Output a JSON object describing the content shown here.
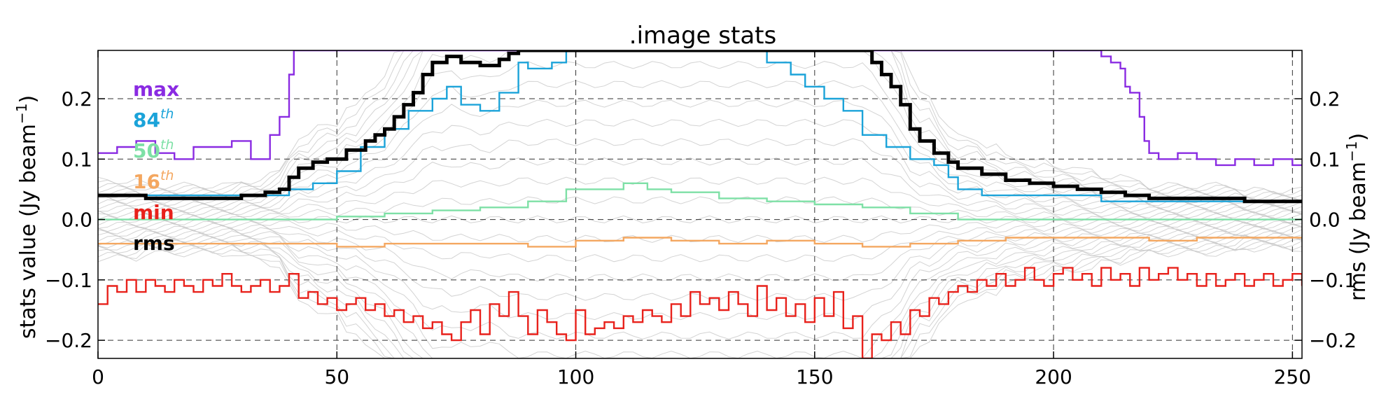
{
  "chart_data": {
    "type": "line",
    "title": ".image stats",
    "xlabel": "",
    "ylabel": "stats value (Jy beam",
    "ylabel_sup": "−1",
    "ylabel_tail": ")",
    "y2label": "rms (Jy beam",
    "y2label_sup": "−1",
    "y2label_tail": ")",
    "xlim": [
      0,
      252
    ],
    "ylim": [
      -0.23,
      0.28
    ],
    "x_ticks": [
      0,
      50,
      100,
      150,
      200,
      250
    ],
    "x_tick_labels": [
      "0",
      "50",
      "100",
      "150",
      "200",
      "250"
    ],
    "y_ticks": [
      -0.2,
      -0.1,
      0.0,
      0.1,
      0.2
    ],
    "y_tick_labels": [
      "−0.2",
      "−0.1",
      "0.0",
      "0.1",
      "0.2"
    ],
    "y2_tick_labels": [
      "−0.2",
      "−0.1",
      "0.0",
      "0.1",
      "0.2"
    ],
    "grid": true,
    "legend_position": "top-left",
    "legend": [
      {
        "text": "max",
        "sup": "",
        "color": "#8a2be2"
      },
      {
        "text": "84",
        "sup": "th",
        "color": "#1ba3d9"
      },
      {
        "text": "50",
        "sup": "th",
        "color": "#7ee0a6"
      },
      {
        "text": "16",
        "sup": "th",
        "color": "#f4a760"
      },
      {
        "text": "min",
        "sup": "",
        "color": "#e8211b"
      },
      {
        "text": "rms",
        "sup": "",
        "color": "#000000"
      }
    ],
    "series": [
      {
        "key": "max",
        "color": "#8a2be2",
        "style": "step",
        "width": 2.4,
        "points": [
          [
            0,
            0.11
          ],
          [
            4,
            0.12
          ],
          [
            8,
            0.13
          ],
          [
            12,
            0.11
          ],
          [
            16,
            0.1
          ],
          [
            20,
            0.12
          ],
          [
            24,
            0.12
          ],
          [
            28,
            0.13
          ],
          [
            32,
            0.1
          ],
          [
            36,
            0.14
          ],
          [
            38,
            0.17
          ],
          [
            40,
            0.24
          ],
          [
            41,
            0.28
          ],
          [
            43,
            0.28
          ],
          [
            206,
            0.28
          ],
          [
            210,
            0.27
          ],
          [
            212,
            0.26
          ],
          [
            214,
            0.25
          ],
          [
            215,
            0.22
          ],
          [
            216,
            0.21
          ],
          [
            218,
            0.17
          ],
          [
            219,
            0.13
          ],
          [
            220,
            0.11
          ],
          [
            222,
            0.1
          ],
          [
            226,
            0.11
          ],
          [
            230,
            0.1
          ],
          [
            234,
            0.09
          ],
          [
            238,
            0.1
          ],
          [
            242,
            0.09
          ],
          [
            246,
            0.1
          ],
          [
            250,
            0.09
          ],
          [
            252,
            0.09
          ]
        ]
      },
      {
        "key": "p84",
        "color": "#1ba3d9",
        "style": "step",
        "width": 2.4,
        "points": [
          [
            0,
            0.04
          ],
          [
            20,
            0.04
          ],
          [
            35,
            0.04
          ],
          [
            40,
            0.05
          ],
          [
            45,
            0.06
          ],
          [
            50,
            0.08
          ],
          [
            55,
            0.12
          ],
          [
            60,
            0.15
          ],
          [
            65,
            0.18
          ],
          [
            70,
            0.2
          ],
          [
            73,
            0.22
          ],
          [
            76,
            0.19
          ],
          [
            80,
            0.18
          ],
          [
            84,
            0.21
          ],
          [
            88,
            0.26
          ],
          [
            90,
            0.25
          ],
          [
            95,
            0.26
          ],
          [
            98,
            0.28
          ],
          [
            138,
            0.28
          ],
          [
            140,
            0.26
          ],
          [
            145,
            0.24
          ],
          [
            148,
            0.22
          ],
          [
            152,
            0.2
          ],
          [
            156,
            0.18
          ],
          [
            160,
            0.14
          ],
          [
            165,
            0.12
          ],
          [
            170,
            0.1
          ],
          [
            175,
            0.09
          ],
          [
            178,
            0.07
          ],
          [
            180,
            0.05
          ],
          [
            185,
            0.04
          ],
          [
            190,
            0.04
          ],
          [
            200,
            0.04
          ],
          [
            210,
            0.03
          ],
          [
            220,
            0.03
          ],
          [
            230,
            0.03
          ],
          [
            240,
            0.03
          ],
          [
            252,
            0.03
          ]
        ]
      },
      {
        "key": "p50",
        "color": "#7ee0a6",
        "style": "step",
        "width": 2.4,
        "points": [
          [
            0,
            0.0
          ],
          [
            20,
            0.0
          ],
          [
            40,
            0.0
          ],
          [
            50,
            0.005
          ],
          [
            60,
            0.01
          ],
          [
            70,
            0.015
          ],
          [
            80,
            0.02
          ],
          [
            90,
            0.03
          ],
          [
            98,
            0.05
          ],
          [
            105,
            0.05
          ],
          [
            110,
            0.06
          ],
          [
            115,
            0.05
          ],
          [
            120,
            0.045
          ],
          [
            130,
            0.035
          ],
          [
            140,
            0.03
          ],
          [
            150,
            0.025
          ],
          [
            160,
            0.02
          ],
          [
            170,
            0.01
          ],
          [
            180,
            0.0
          ],
          [
            190,
            0.0
          ],
          [
            200,
            0.0
          ],
          [
            220,
            0.0
          ],
          [
            252,
            0.0
          ]
        ]
      },
      {
        "key": "p16",
        "color": "#f4a760",
        "style": "step",
        "width": 2.4,
        "points": [
          [
            0,
            -0.04
          ],
          [
            20,
            -0.04
          ],
          [
            40,
            -0.04
          ],
          [
            50,
            -0.045
          ],
          [
            60,
            -0.04
          ],
          [
            80,
            -0.04
          ],
          [
            90,
            -0.045
          ],
          [
            100,
            -0.035
          ],
          [
            110,
            -0.03
          ],
          [
            120,
            -0.035
          ],
          [
            130,
            -0.04
          ],
          [
            140,
            -0.035
          ],
          [
            150,
            -0.04
          ],
          [
            160,
            -0.045
          ],
          [
            170,
            -0.04
          ],
          [
            180,
            -0.035
          ],
          [
            190,
            -0.03
          ],
          [
            200,
            -0.03
          ],
          [
            210,
            -0.03
          ],
          [
            220,
            -0.035
          ],
          [
            230,
            -0.03
          ],
          [
            240,
            -0.03
          ],
          [
            252,
            -0.03
          ]
        ]
      },
      {
        "key": "min",
        "color": "#e8211b",
        "style": "step",
        "width": 2.4,
        "points": [
          [
            0,
            -0.14
          ],
          [
            2,
            -0.11
          ],
          [
            4,
            -0.12
          ],
          [
            6,
            -0.1
          ],
          [
            8,
            -0.12
          ],
          [
            10,
            -0.1
          ],
          [
            12,
            -0.11
          ],
          [
            14,
            -0.12
          ],
          [
            16,
            -0.1
          ],
          [
            18,
            -0.11
          ],
          [
            20,
            -0.12
          ],
          [
            22,
            -0.1
          ],
          [
            24,
            -0.11
          ],
          [
            26,
            -0.09
          ],
          [
            28,
            -0.11
          ],
          [
            30,
            -0.12
          ],
          [
            32,
            -0.11
          ],
          [
            34,
            -0.1
          ],
          [
            36,
            -0.12
          ],
          [
            38,
            -0.11
          ],
          [
            40,
            -0.09
          ],
          [
            42,
            -0.13
          ],
          [
            44,
            -0.12
          ],
          [
            46,
            -0.14
          ],
          [
            48,
            -0.13
          ],
          [
            50,
            -0.15
          ],
          [
            52,
            -0.14
          ],
          [
            54,
            -0.13
          ],
          [
            56,
            -0.15
          ],
          [
            58,
            -0.14
          ],
          [
            60,
            -0.16
          ],
          [
            62,
            -0.15
          ],
          [
            64,
            -0.17
          ],
          [
            66,
            -0.16
          ],
          [
            68,
            -0.18
          ],
          [
            70,
            -0.17
          ],
          [
            72,
            -0.19
          ],
          [
            74,
            -0.2
          ],
          [
            76,
            -0.17
          ],
          [
            78,
            -0.15
          ],
          [
            80,
            -0.19
          ],
          [
            82,
            -0.14
          ],
          [
            84,
            -0.16
          ],
          [
            86,
            -0.12
          ],
          [
            88,
            -0.16
          ],
          [
            90,
            -0.19
          ],
          [
            92,
            -0.15
          ],
          [
            94,
            -0.17
          ],
          [
            96,
            -0.19
          ],
          [
            98,
            -0.2
          ],
          [
            100,
            -0.15
          ],
          [
            102,
            -0.19
          ],
          [
            104,
            -0.18
          ],
          [
            106,
            -0.17
          ],
          [
            108,
            -0.18
          ],
          [
            110,
            -0.16
          ],
          [
            112,
            -0.17
          ],
          [
            114,
            -0.15
          ],
          [
            116,
            -0.16
          ],
          [
            118,
            -0.17
          ],
          [
            120,
            -0.14
          ],
          [
            122,
            -0.16
          ],
          [
            124,
            -0.12
          ],
          [
            126,
            -0.14
          ],
          [
            128,
            -0.13
          ],
          [
            130,
            -0.15
          ],
          [
            132,
            -0.12
          ],
          [
            134,
            -0.14
          ],
          [
            136,
            -0.16
          ],
          [
            138,
            -0.11
          ],
          [
            140,
            -0.15
          ],
          [
            142,
            -0.13
          ],
          [
            144,
            -0.16
          ],
          [
            146,
            -0.14
          ],
          [
            148,
            -0.17
          ],
          [
            150,
            -0.13
          ],
          [
            152,
            -0.16
          ],
          [
            154,
            -0.12
          ],
          [
            156,
            -0.18
          ],
          [
            158,
            -0.16
          ],
          [
            160,
            -0.23
          ],
          [
            162,
            -0.19
          ],
          [
            164,
            -0.2
          ],
          [
            166,
            -0.17
          ],
          [
            168,
            -0.19
          ],
          [
            170,
            -0.15
          ],
          [
            172,
            -0.16
          ],
          [
            174,
            -0.13
          ],
          [
            176,
            -0.14
          ],
          [
            178,
            -0.12
          ],
          [
            180,
            -0.11
          ],
          [
            182,
            -0.12
          ],
          [
            184,
            -0.1
          ],
          [
            186,
            -0.11
          ],
          [
            188,
            -0.09
          ],
          [
            190,
            -0.11
          ],
          [
            192,
            -0.1
          ],
          [
            194,
            -0.08
          ],
          [
            196,
            -0.1
          ],
          [
            198,
            -0.11
          ],
          [
            200,
            -0.09
          ],
          [
            202,
            -0.08
          ],
          [
            204,
            -0.1
          ],
          [
            206,
            -0.09
          ],
          [
            208,
            -0.11
          ],
          [
            210,
            -0.08
          ],
          [
            212,
            -0.1
          ],
          [
            214,
            -0.09
          ],
          [
            216,
            -0.11
          ],
          [
            218,
            -0.08
          ],
          [
            220,
            -0.1
          ],
          [
            222,
            -0.09
          ],
          [
            224,
            -0.08
          ],
          [
            226,
            -0.1
          ],
          [
            228,
            -0.09
          ],
          [
            230,
            -0.11
          ],
          [
            232,
            -0.09
          ],
          [
            234,
            -0.11
          ],
          [
            236,
            -0.1
          ],
          [
            238,
            -0.09
          ],
          [
            240,
            -0.11
          ],
          [
            242,
            -0.1
          ],
          [
            244,
            -0.09
          ],
          [
            246,
            -0.11
          ],
          [
            248,
            -0.1
          ],
          [
            250,
            -0.09
          ],
          [
            252,
            -0.11
          ]
        ]
      },
      {
        "key": "rms",
        "color": "#000000",
        "style": "step",
        "width": 5,
        "points": [
          [
            0,
            0.04
          ],
          [
            10,
            0.035
          ],
          [
            20,
            0.035
          ],
          [
            30,
            0.04
          ],
          [
            35,
            0.045
          ],
          [
            38,
            0.05
          ],
          [
            40,
            0.07
          ],
          [
            42,
            0.085
          ],
          [
            45,
            0.095
          ],
          [
            48,
            0.1
          ],
          [
            52,
            0.115
          ],
          [
            56,
            0.13
          ],
          [
            58,
            0.14
          ],
          [
            60,
            0.15
          ],
          [
            62,
            0.17
          ],
          [
            64,
            0.19
          ],
          [
            66,
            0.21
          ],
          [
            68,
            0.24
          ],
          [
            70,
            0.26
          ],
          [
            73,
            0.27
          ],
          [
            76,
            0.26
          ],
          [
            80,
            0.255
          ],
          [
            84,
            0.265
          ],
          [
            86,
            0.275
          ],
          [
            88,
            0.28
          ],
          [
            160,
            0.28
          ],
          [
            162,
            0.26
          ],
          [
            164,
            0.24
          ],
          [
            166,
            0.22
          ],
          [
            168,
            0.19
          ],
          [
            170,
            0.15
          ],
          [
            172,
            0.13
          ],
          [
            175,
            0.11
          ],
          [
            178,
            0.095
          ],
          [
            180,
            0.085
          ],
          [
            185,
            0.075
          ],
          [
            190,
            0.065
          ],
          [
            195,
            0.06
          ],
          [
            200,
            0.055
          ],
          [
            205,
            0.05
          ],
          [
            210,
            0.045
          ],
          [
            215,
            0.04
          ],
          [
            220,
            0.035
          ],
          [
            230,
            0.035
          ],
          [
            240,
            0.03
          ],
          [
            252,
            0.03
          ]
        ]
      }
    ]
  }
}
